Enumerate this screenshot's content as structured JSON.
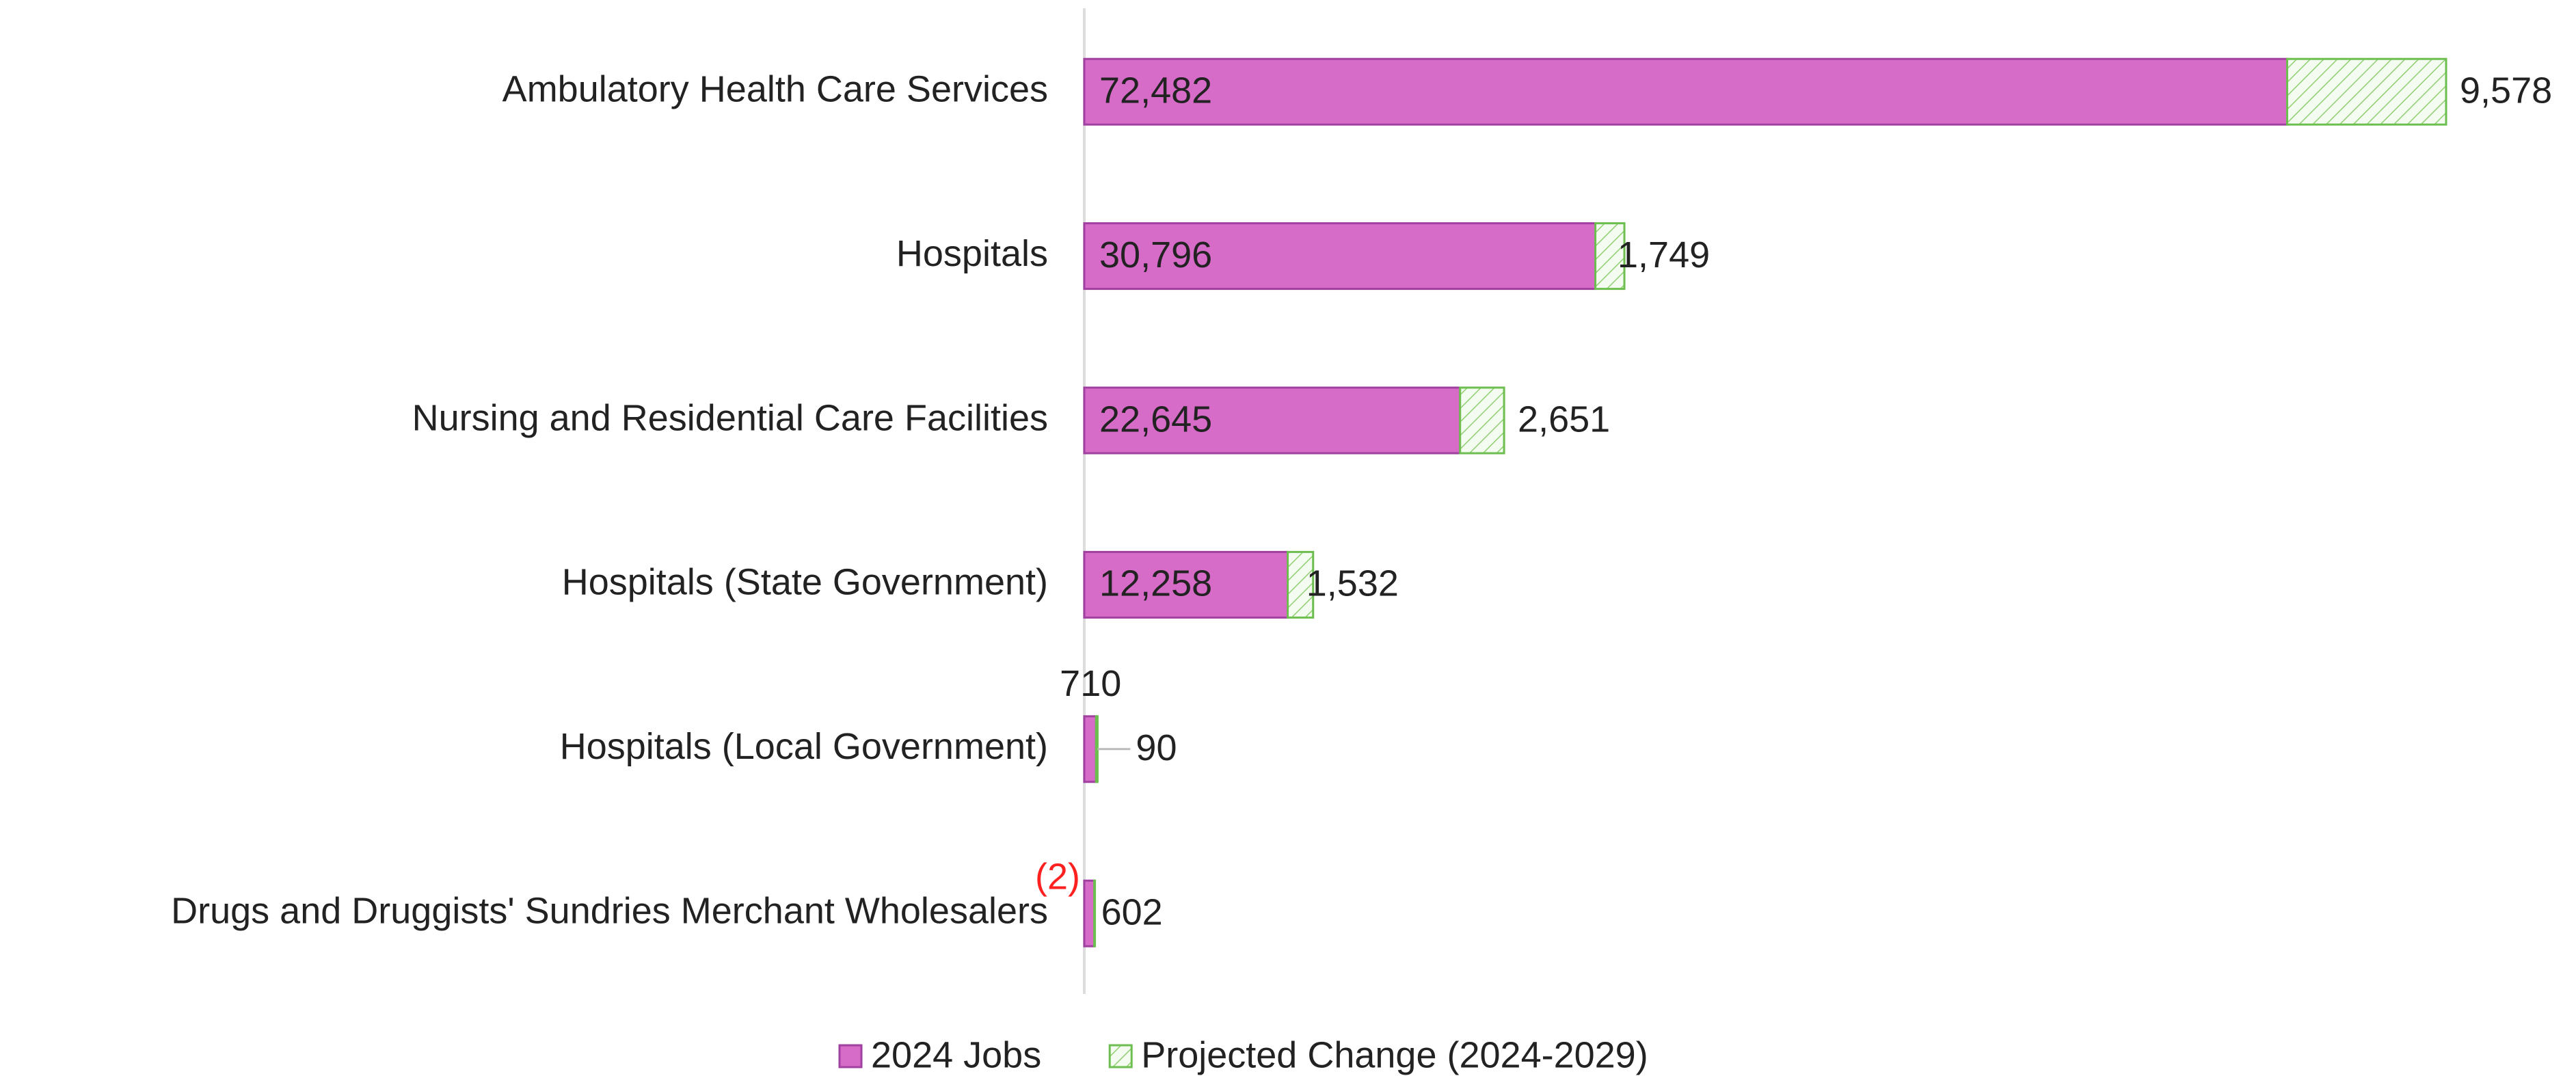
{
  "chart_data": {
    "type": "stacked-bar-horizontal",
    "categories": [
      "Ambulatory Health Care Services",
      "Hospitals",
      "Nursing and Residential Care Facilities",
      "Hospitals (State Government)",
      "Hospitals (Local Government)",
      "Drugs and Druggists' Sundries Merchant Wholesalers"
    ],
    "series": [
      {
        "name": "2024 Jobs",
        "color": "#d76bc8",
        "values": [
          72482,
          30796,
          22645,
          12258,
          710,
          602
        ],
        "value_labels": [
          "72,482",
          "30,796",
          "22,645",
          "12,258",
          "710",
          "602"
        ]
      },
      {
        "name": "Projected Change (2024-2029)",
        "color": "#6cbf4f",
        "values": [
          9578,
          1749,
          2651,
          1532,
          90,
          -2
        ],
        "value_labels": [
          "9,578",
          "1,749",
          "2,651",
          "1,532",
          "90",
          "(2)"
        ]
      }
    ],
    "legend": "bottom"
  }
}
